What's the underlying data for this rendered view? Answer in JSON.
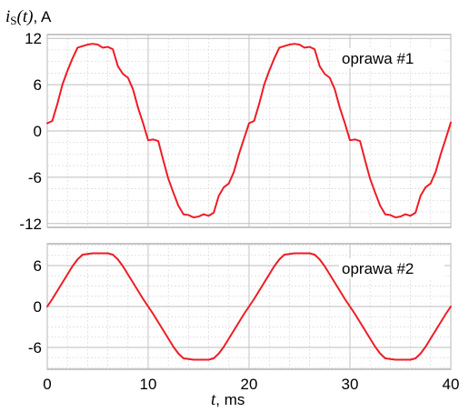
{
  "ylabel": {
    "var": "i",
    "sub": "S",
    "arg": "(t)",
    "unit": ", A"
  },
  "xlabel": {
    "var": "t",
    "unit": ", ms"
  },
  "chart_data": [
    {
      "type": "line",
      "xlabel": "t, ms",
      "ylabel": "iS(t), A",
      "xlim": [
        0,
        40
      ],
      "ylim": [
        -12.5,
        12.5
      ],
      "xticks": [
        "0",
        "10",
        "20",
        "30",
        "40"
      ],
      "yticks": [
        {
          "value": 12,
          "label": "12"
        },
        {
          "value": 6,
          "label": "6"
        },
        {
          "value": 0,
          "label": "0"
        },
        {
          "value": -6,
          "label": "-6"
        },
        {
          "value": -12,
          "label": "-12"
        }
      ],
      "grid": true,
      "legend_position": "top-right",
      "series": [
        {
          "name": "oprawa #1",
          "color": "#ee1c25",
          "x": [
            0,
            0.5,
            1,
            1.5,
            2,
            2.5,
            3,
            3.5,
            4,
            4.5,
            5,
            5.5,
            6,
            6.5,
            7,
            7.5,
            8,
            8.5,
            9,
            9.5,
            10,
            10.5,
            11,
            11.5,
            12,
            12.5,
            13,
            13.5,
            14,
            14.5,
            15,
            15.5,
            16,
            16.5,
            17,
            17.5,
            18,
            18.5,
            19,
            19.5,
            20,
            20.5,
            21,
            21.5,
            22,
            22.5,
            23,
            23.5,
            24,
            24.5,
            25,
            25.5,
            26,
            26.5,
            27,
            27.5,
            28,
            28.5,
            29,
            29.5,
            30,
            30.5,
            31,
            31.5,
            32,
            32.5,
            33,
            33.5,
            34,
            34.5,
            35,
            35.5,
            36,
            36.5,
            37,
            37.5,
            38,
            38.5,
            39,
            39.5,
            40
          ],
          "y": [
            1.0,
            1.3,
            3.5,
            6.0,
            7.8,
            9.4,
            10.8,
            11.0,
            11.2,
            11.3,
            11.2,
            10.8,
            10.9,
            10.6,
            8.4,
            7.4,
            6.9,
            5.4,
            3.0,
            1.0,
            -1.2,
            -1.1,
            -1.3,
            -3.8,
            -6.2,
            -8.0,
            -9.7,
            -10.8,
            -10.9,
            -11.2,
            -11.1,
            -10.8,
            -11.0,
            -10.6,
            -8.4,
            -7.3,
            -6.8,
            -5.3,
            -3.0,
            -1.0,
            1.0,
            1.3,
            3.5,
            6.0,
            7.8,
            9.4,
            10.8,
            11.0,
            11.2,
            11.3,
            11.2,
            10.8,
            10.9,
            10.6,
            8.4,
            7.4,
            6.9,
            5.4,
            3.0,
            1.0,
            -1.2,
            -1.1,
            -1.3,
            -3.8,
            -6.2,
            -8.0,
            -9.7,
            -10.8,
            -10.9,
            -11.2,
            -11.1,
            -10.8,
            -11.0,
            -10.6,
            -8.4,
            -7.3,
            -6.8,
            -5.3,
            -3.0,
            -1.0,
            1.1
          ]
        }
      ]
    },
    {
      "type": "line",
      "xlabel": "t, ms",
      "ylabel": "",
      "xlim": [
        0,
        40
      ],
      "ylim": [
        -9.2,
        9.2
      ],
      "xticks": [
        "0",
        "10",
        "20",
        "30",
        "40"
      ],
      "yticks": [
        {
          "value": 6,
          "label": "6"
        },
        {
          "value": 0,
          "label": "0"
        },
        {
          "value": -6,
          "label": "-6"
        }
      ],
      "grid": true,
      "legend_position": "top-right",
      "series": [
        {
          "name": "oprawa #2",
          "color": "#ee1c25",
          "x": [
            0,
            0.5,
            1,
            1.5,
            2,
            2.5,
            3,
            3.5,
            4,
            4.5,
            5,
            5.5,
            6,
            6.5,
            7,
            7.5,
            8,
            8.5,
            9,
            9.5,
            10,
            10.5,
            11,
            11.5,
            12,
            12.5,
            13,
            13.5,
            14,
            14.5,
            15,
            15.5,
            16,
            16.5,
            17,
            17.5,
            18,
            18.5,
            19,
            19.5,
            20,
            20.5,
            21,
            21.5,
            22,
            22.5,
            23,
            23.5,
            24,
            24.5,
            25,
            25.5,
            26,
            26.5,
            27,
            27.5,
            28,
            28.5,
            29,
            29.5,
            30,
            30.5,
            31,
            31.5,
            32,
            32.5,
            33,
            33.5,
            34,
            34.5,
            35,
            35.5,
            36,
            36.5,
            37,
            37.5,
            38,
            38.5,
            39,
            39.5,
            40
          ],
          "y": [
            0.0,
            1.1,
            2.3,
            3.5,
            4.7,
            5.9,
            6.9,
            7.6,
            7.7,
            7.8,
            7.8,
            7.8,
            7.8,
            7.6,
            6.9,
            5.9,
            4.7,
            3.5,
            2.3,
            1.1,
            0.0,
            -1.1,
            -2.3,
            -3.5,
            -4.7,
            -5.9,
            -6.9,
            -7.6,
            -7.7,
            -7.8,
            -7.8,
            -7.8,
            -7.8,
            -7.6,
            -6.9,
            -5.9,
            -4.7,
            -3.5,
            -2.3,
            -1.1,
            0.0,
            1.1,
            2.3,
            3.5,
            4.7,
            5.9,
            6.9,
            7.6,
            7.7,
            7.8,
            7.8,
            7.8,
            7.8,
            7.6,
            6.9,
            5.9,
            4.7,
            3.5,
            2.3,
            1.1,
            0.0,
            -1.1,
            -2.3,
            -3.5,
            -4.7,
            -5.9,
            -6.9,
            -7.6,
            -7.7,
            -7.8,
            -7.8,
            -7.8,
            -7.8,
            -7.6,
            -6.9,
            -5.9,
            -4.7,
            -3.5,
            -2.3,
            -1.1,
            0.0
          ]
        }
      ]
    }
  ]
}
